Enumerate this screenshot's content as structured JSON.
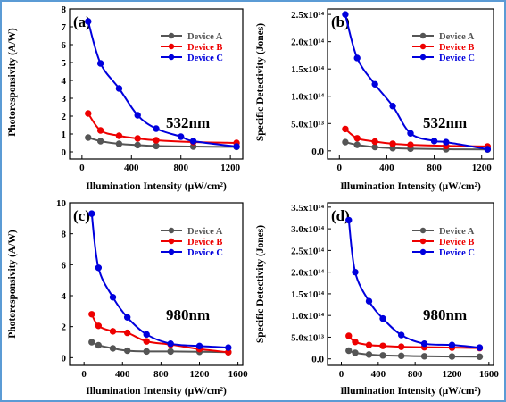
{
  "chart_data": [
    {
      "type": "line",
      "panel_label": "(a)",
      "wavelength_label": "532nm",
      "xlabel": "Illumination Intensity (μW/cm²)",
      "ylabel": "Photoresponsivity (A/W)",
      "xlim": [
        -100,
        1300
      ],
      "ylim": [
        -0.4,
        8
      ],
      "xticks": [
        0,
        400,
        800,
        1200
      ],
      "xtick_labels": [
        "0",
        "400",
        "800",
        "1200"
      ],
      "yticks": [
        0,
        1,
        2,
        3,
        4,
        5,
        6,
        7,
        8
      ],
      "ytick_labels": [
        "0",
        "1",
        "2",
        "3",
        "4",
        "5",
        "6",
        "7",
        "8"
      ],
      "legend_position": "top-right",
      "grid": false,
      "series": [
        {
          "name": "Device A",
          "color": "#555555",
          "x": [
            50,
            150,
            300,
            450,
            600,
            900,
            1250
          ],
          "y": [
            0.8,
            0.6,
            0.45,
            0.38,
            0.33,
            0.3,
            0.28
          ]
        },
        {
          "name": "Device B",
          "color": "#ee0000",
          "x": [
            50,
            150,
            300,
            450,
            600,
            900,
            1250
          ],
          "y": [
            2.15,
            1.2,
            0.9,
            0.75,
            0.65,
            0.55,
            0.5
          ]
        },
        {
          "name": "Device C",
          "color": "#0000dd",
          "x": [
            50,
            150,
            300,
            450,
            600,
            800,
            900,
            1250
          ],
          "y": [
            7.3,
            4.95,
            3.55,
            2.05,
            1.3,
            0.85,
            0.6,
            0.3
          ]
        }
      ]
    },
    {
      "type": "line",
      "panel_label": "(b)",
      "wavelength_label": "532nm",
      "xlabel": "Illumination Intensity (μW/cm²)",
      "ylabel": "Specific Detectivity (Jones)",
      "xlim": [
        -100,
        1300
      ],
      "ylim": [
        -15000000000000.0,
        260000000000000.0
      ],
      "xticks": [
        0,
        400,
        800,
        1200
      ],
      "xtick_labels": [
        "0",
        "400",
        "800",
        "1200"
      ],
      "yticks": [
        0,
        50000000000000.0,
        100000000000000.0,
        150000000000000.0,
        200000000000000.0,
        250000000000000.0
      ],
      "ytick_labels": [
        "0.0",
        "5.0x10¹³",
        "1.0x10¹⁴",
        "1.5x10¹⁴",
        "2.0x10¹⁴",
        "2.5x10¹⁴"
      ],
      "legend_position": "top-right",
      "grid": false,
      "series": [
        {
          "name": "Device A",
          "color": "#555555",
          "x": [
            50,
            150,
            300,
            450,
            600,
            900,
            1250
          ],
          "y": [
            16000000000000.0,
            11000000000000.0,
            7000000000000.0,
            5000000000000.0,
            4000000000000.0,
            3000000000000.0,
            2500000000000.0
          ]
        },
        {
          "name": "Device B",
          "color": "#ee0000",
          "x": [
            50,
            150,
            300,
            450,
            600,
            900,
            1250
          ],
          "y": [
            40000000000000.0,
            23000000000000.0,
            17000000000000.0,
            13000000000000.0,
            11000000000000.0,
            9000000000000.0,
            8000000000000.0
          ]
        },
        {
          "name": "Device C",
          "color": "#0000dd",
          "x": [
            50,
            150,
            300,
            450,
            600,
            800,
            900,
            1250
          ],
          "y": [
            250000000000000.0,
            170000000000000.0,
            122000000000000.0,
            82000000000000.0,
            32000000000000.0,
            18000000000000.0,
            16000000000000.0,
            3000000000000.0
          ]
        }
      ]
    },
    {
      "type": "line",
      "panel_label": "(c)",
      "wavelength_label": "980nm",
      "xlabel": "Illumination Intensity (μW/cm²)",
      "ylabel": "Photoresponsivity (A/W)",
      "xlim": [
        -150,
        1650
      ],
      "ylim": [
        -0.5,
        10
      ],
      "xticks": [
        0,
        400,
        800,
        1200,
        1600
      ],
      "xtick_labels": [
        "0",
        "400",
        "800",
        "1200",
        "1600"
      ],
      "yticks": [
        0,
        2,
        4,
        6,
        8,
        10
      ],
      "ytick_labels": [
        "0",
        "2",
        "4",
        "6",
        "8",
        "10"
      ],
      "legend_position": "top-right",
      "grid": false,
      "series": [
        {
          "name": "Device A",
          "color": "#555555",
          "x": [
            80,
            150,
            300,
            450,
            650,
            900,
            1200,
            1500
          ],
          "y": [
            1.0,
            0.8,
            0.6,
            0.45,
            0.4,
            0.4,
            0.38,
            0.35
          ]
        },
        {
          "name": "Device B",
          "color": "#ee0000",
          "x": [
            80,
            150,
            300,
            450,
            650,
            900,
            1200,
            1500
          ],
          "y": [
            2.8,
            2.05,
            1.7,
            1.6,
            1.05,
            0.85,
            0.55,
            0.35
          ]
        },
        {
          "name": "Device C",
          "color": "#0000dd",
          "x": [
            80,
            150,
            300,
            450,
            650,
            900,
            1200,
            1500
          ],
          "y": [
            9.3,
            5.8,
            3.9,
            2.6,
            1.5,
            0.9,
            0.75,
            0.65
          ]
        }
      ]
    },
    {
      "type": "line",
      "panel_label": "(d)",
      "wavelength_label": "980nm",
      "xlabel": "Illumination Intensity (μW/cm²)",
      "ylabel": "Specific Detectivity (Jones)",
      "xlim": [
        -150,
        1650
      ],
      "ylim": [
        -15000000000000.0,
        360000000000000.0
      ],
      "xticks": [
        0,
        400,
        800,
        1200,
        1600
      ],
      "xtick_labels": [
        "0",
        "400",
        "800",
        "1200",
        "1600"
      ],
      "yticks": [
        0,
        50000000000000.0,
        100000000000000.0,
        150000000000000.0,
        200000000000000.0,
        250000000000000.0,
        300000000000000.0,
        350000000000000.0
      ],
      "ytick_labels": [
        "0.0",
        "5.0x10¹³",
        "1.0x10¹⁴",
        "1.5x10¹⁴",
        "2.0x10¹⁴",
        "2.5x10¹⁴",
        "3.0x10¹⁴",
        "3.5x10¹⁴"
      ],
      "legend_position": "top-right",
      "grid": false,
      "series": [
        {
          "name": "Device A",
          "color": "#555555",
          "x": [
            80,
            150,
            300,
            450,
            650,
            900,
            1200,
            1500
          ],
          "y": [
            19000000000000.0,
            14000000000000.0,
            10000000000000.0,
            8000000000000.0,
            7000000000000.0,
            6000000000000.0,
            5500000000000.0,
            5000000000000.0
          ]
        },
        {
          "name": "Device B",
          "color": "#ee0000",
          "x": [
            80,
            150,
            300,
            450,
            650,
            900,
            1200,
            1500
          ],
          "y": [
            53000000000000.0,
            39000000000000.0,
            32000000000000.0,
            30000000000000.0,
            28000000000000.0,
            27000000000000.0,
            26000000000000.0,
            25000000000000.0
          ]
        },
        {
          "name": "Device C",
          "color": "#0000dd",
          "x": [
            80,
            150,
            300,
            450,
            650,
            900,
            1200,
            1500
          ],
          "y": [
            320000000000000.0,
            200000000000000.0,
            133000000000000.0,
            93000000000000.0,
            55000000000000.0,
            35000000000000.0,
            32000000000000.0,
            26000000000000.0
          ]
        }
      ]
    }
  ],
  "frame_color": "#5b9bd5"
}
